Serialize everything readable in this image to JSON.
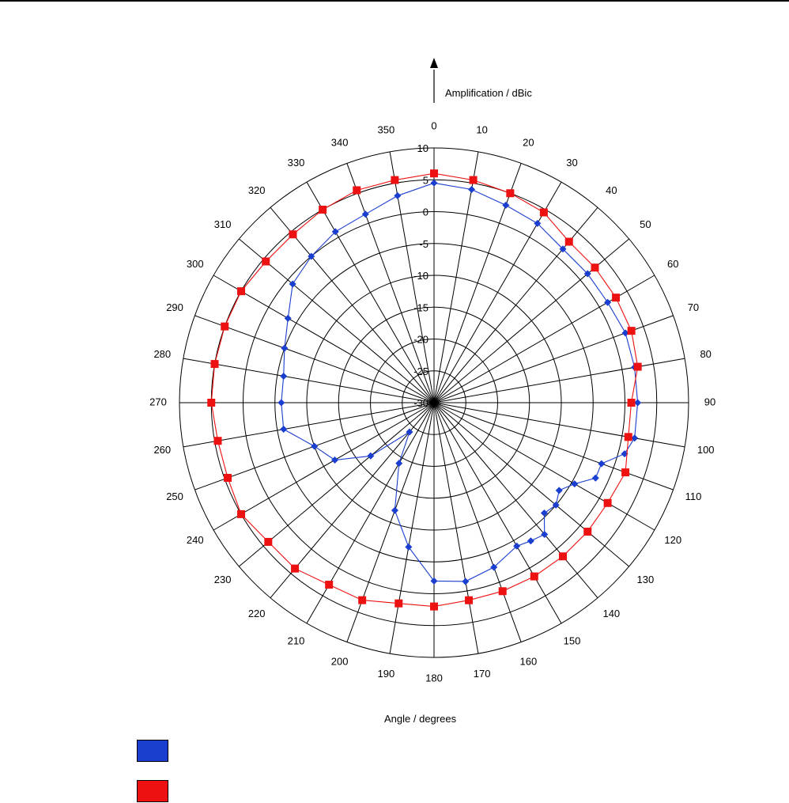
{
  "chart_data": {
    "type": "polar-line",
    "title": "",
    "radial_axis_label": "Amplification / dBic",
    "angular_axis_label": "Angle / degrees",
    "radial_range": [
      -30,
      10
    ],
    "radial_ticks": [
      10,
      5,
      0,
      -5,
      -10,
      -15,
      -20,
      -25,
      -30
    ],
    "angle_ticks": [
      0,
      10,
      20,
      30,
      40,
      50,
      60,
      70,
      80,
      90,
      100,
      110,
      120,
      130,
      140,
      150,
      160,
      170,
      180,
      190,
      200,
      210,
      220,
      230,
      240,
      250,
      260,
      270,
      280,
      290,
      300,
      310,
      320,
      330,
      340,
      350
    ],
    "angle_zero_at": "top",
    "angle_direction": "clockwise",
    "grid": true,
    "legend_position": "bottom-left",
    "series": [
      {
        "color": "#1a3ecf",
        "marker": "diamond",
        "angles": [
          0,
          10,
          20,
          30,
          40,
          50,
          60,
          70,
          80,
          90,
          100,
          105,
          110,
          115,
          120,
          125,
          130,
          135,
          140,
          145,
          150,
          160,
          170,
          180,
          190,
          200,
          210,
          220,
          230,
          240,
          250,
          260,
          270,
          280,
          290,
          300,
          310,
          320,
          330,
          340,
          350
        ],
        "values": [
          4.5,
          4,
          3,
          2.5,
          1.5,
          1.5,
          1.5,
          2,
          2,
          2,
          2,
          1,
          -2,
          -2,
          -4.5,
          -6,
          -5,
          -5.5,
          -3,
          -3.5,
          -4,
          -2.5,
          -1.5,
          -2,
          -7,
          -12,
          -19,
          -24,
          -17,
          -12,
          -10,
          -6,
          -6,
          -6,
          -5,
          -3.5,
          -1,
          0,
          1,
          1.5,
          3
        ]
      },
      {
        "color": "#ee1111",
        "marker": "square",
        "angles": [
          0,
          10,
          20,
          30,
          40,
          50,
          60,
          70,
          80,
          90,
          100,
          110,
          120,
          130,
          140,
          150,
          160,
          170,
          180,
          190,
          200,
          210,
          220,
          230,
          240,
          250,
          260,
          270,
          280,
          290,
          300,
          310,
          320,
          330,
          340,
          350
        ],
        "values": [
          6,
          5.5,
          5,
          4.5,
          3,
          3,
          3,
          3,
          2.5,
          1,
          1,
          2,
          1.5,
          1.5,
          1.5,
          1.5,
          1.5,
          1.5,
          2,
          2,
          3,
          3,
          4,
          4,
          5,
          4.5,
          4.5,
          5,
          5,
          5,
          5,
          4.5,
          4.5,
          5,
          5.5,
          5.5
        ]
      }
    ]
  }
}
